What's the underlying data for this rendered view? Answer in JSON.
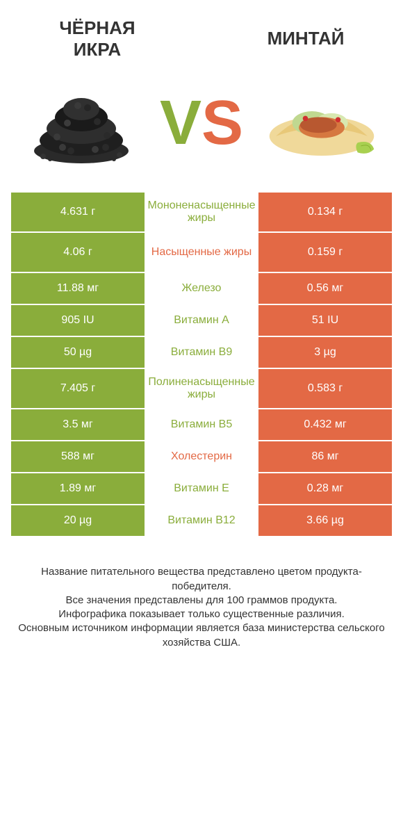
{
  "colors": {
    "green": "#8aad3b",
    "orange": "#e36945",
    "text": "#333333"
  },
  "left_title": "ЧЁРНАЯ\nИКРА",
  "right_title": "МИНТАЙ",
  "vs_v": "V",
  "vs_s": "S",
  "rows": [
    {
      "left": "4.631 г",
      "mid": "Мононенасыщенные жиры",
      "right": "0.134 г",
      "mid_color": "green",
      "tall": true
    },
    {
      "left": "4.06 г",
      "mid": "Насыщенные жиры",
      "right": "0.159 г",
      "mid_color": "orange",
      "tall": true
    },
    {
      "left": "11.88 мг",
      "mid": "Железо",
      "right": "0.56 мг",
      "mid_color": "green",
      "tall": false
    },
    {
      "left": "905 IU",
      "mid": "Витамин A",
      "right": "51 IU",
      "mid_color": "green",
      "tall": false
    },
    {
      "left": "50 µg",
      "mid": "Витамин B9",
      "right": "3 µg",
      "mid_color": "green",
      "tall": false
    },
    {
      "left": "7.405 г",
      "mid": "Полиненасыщенные жиры",
      "right": "0.583 г",
      "mid_color": "green",
      "tall": true
    },
    {
      "left": "3.5 мг",
      "mid": "Витамин B5",
      "right": "0.432 мг",
      "mid_color": "green",
      "tall": false
    },
    {
      "left": "588 мг",
      "mid": "Холестерин",
      "right": "86 мг",
      "mid_color": "orange",
      "tall": false
    },
    {
      "left": "1.89 мг",
      "mid": "Витамин E",
      "right": "0.28 мг",
      "mid_color": "green",
      "tall": false
    },
    {
      "left": "20 µg",
      "mid": "Витамин B12",
      "right": "3.66 µg",
      "mid_color": "green",
      "tall": false
    }
  ],
  "footer_lines": [
    "Название питательного вещества представлено цветом продукта-победителя.",
    "Все значения представлены для 100 граммов продукта.",
    "Инфографика показывает только существенные различия.",
    "Основным источником информации является база министерства сельского хозяйства США."
  ]
}
